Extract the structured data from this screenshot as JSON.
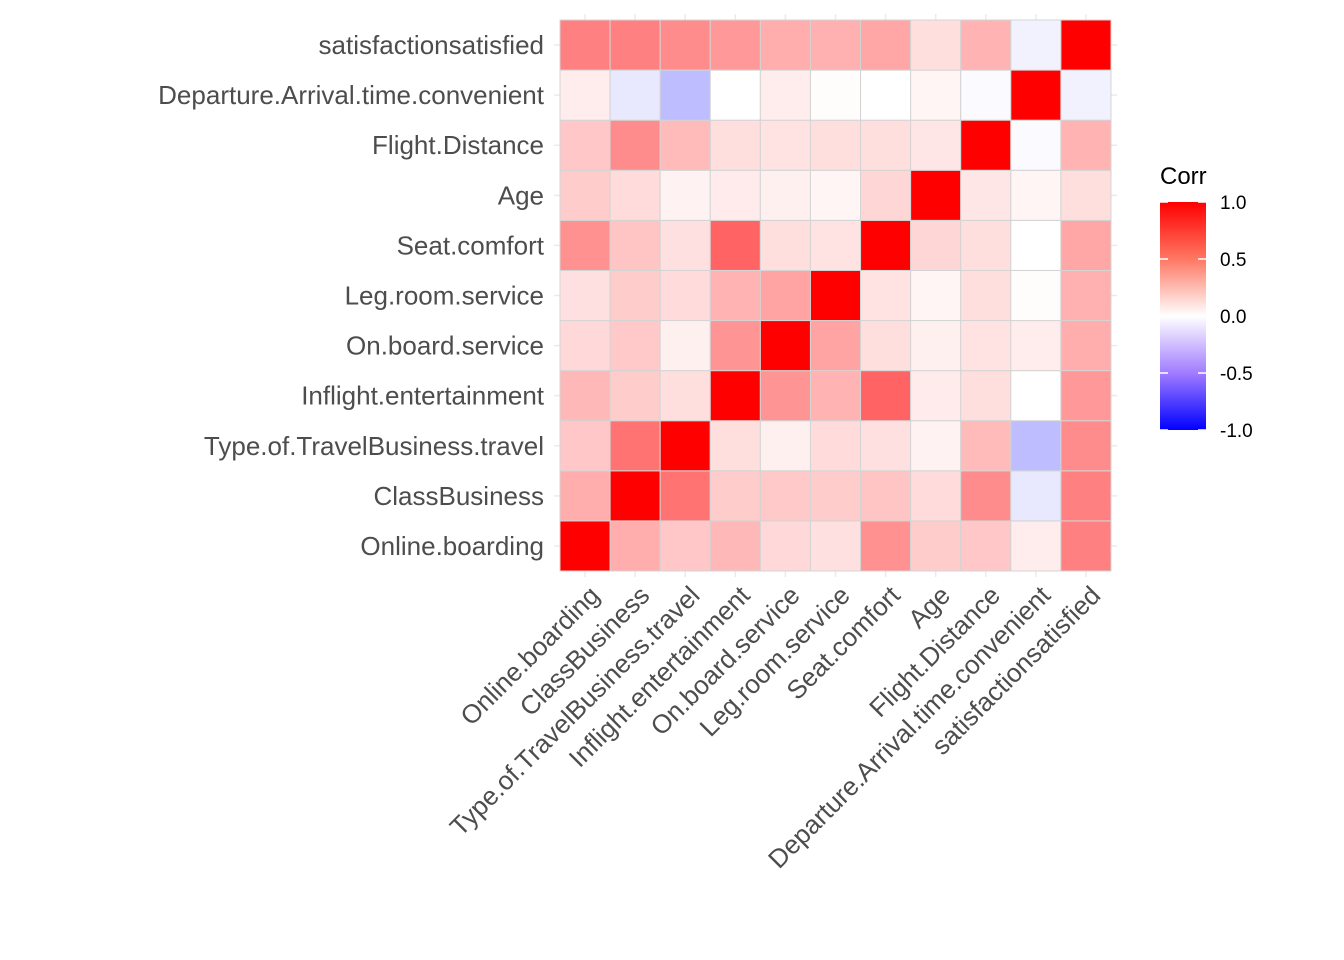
{
  "chart_data": {
    "type": "heatmap",
    "variables": [
      "Online.boarding",
      "ClassBusiness",
      "Type.of.TravelBusiness.travel",
      "Inflight.entertainment",
      "On.board.service",
      "Leg.room.service",
      "Seat.comfort",
      "Age",
      "Flight.Distance",
      "Departure.Arrival.time.convenient",
      "satisfactionsatisfied"
    ],
    "matrix": [
      [
        1.0,
        0.32,
        0.22,
        0.28,
        0.15,
        0.12,
        0.43,
        0.2,
        0.22,
        0.07,
        0.5
      ],
      [
        0.32,
        1.0,
        0.55,
        0.2,
        0.21,
        0.2,
        0.23,
        0.14,
        0.45,
        -0.09,
        0.5
      ],
      [
        0.22,
        0.55,
        1.0,
        0.13,
        0.06,
        0.14,
        0.12,
        0.05,
        0.27,
        -0.26,
        0.45
      ],
      [
        0.28,
        0.2,
        0.13,
        1.0,
        0.42,
        0.3,
        0.61,
        0.08,
        0.13,
        0.0,
        0.4
      ],
      [
        0.15,
        0.21,
        0.06,
        0.42,
        1.0,
        0.36,
        0.13,
        0.06,
        0.11,
        0.07,
        0.32
      ],
      [
        0.12,
        0.2,
        0.14,
        0.3,
        0.36,
        1.0,
        0.11,
        0.04,
        0.13,
        0.01,
        0.31
      ],
      [
        0.43,
        0.23,
        0.12,
        0.61,
        0.13,
        0.11,
        1.0,
        0.16,
        0.13,
        0.0,
        0.35
      ],
      [
        0.2,
        0.14,
        0.05,
        0.08,
        0.06,
        0.04,
        0.16,
        1.0,
        0.1,
        0.04,
        0.13
      ],
      [
        0.22,
        0.45,
        0.27,
        0.13,
        0.11,
        0.13,
        0.13,
        0.1,
        1.0,
        -0.02,
        0.3
      ],
      [
        0.07,
        -0.09,
        -0.26,
        0.0,
        0.07,
        0.01,
        0.0,
        0.04,
        -0.02,
        1.0,
        -0.05
      ],
      [
        0.5,
        0.5,
        0.45,
        0.4,
        0.32,
        0.31,
        0.35,
        0.13,
        0.3,
        -0.05,
        1.0
      ]
    ],
    "legend": {
      "title": "Corr",
      "ticks": [
        "1.0",
        "0.5",
        "0.0",
        "-0.5",
        "-1.0"
      ],
      "tick_values": [
        1.0,
        0.5,
        0.0,
        -0.5,
        -1.0
      ],
      "placement": "right"
    },
    "scale": {
      "low_color": "#0000ff",
      "mid_color": "#ffffff",
      "high_color": "#ff0000",
      "range": [
        -1,
        1
      ]
    },
    "grid": true,
    "xlabel": "",
    "ylabel": "",
    "title": ""
  }
}
